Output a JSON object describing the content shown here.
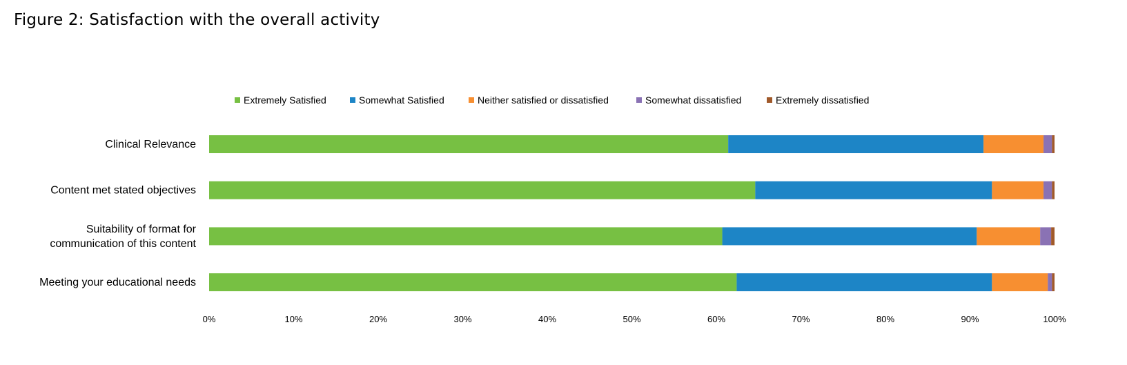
{
  "title": "Figure 2: Satisfaction with the overall activity",
  "chart_data": {
    "type": "bar",
    "orientation": "horizontal",
    "stacked": true,
    "percent": true,
    "title": "Figure 2: Satisfaction with the overall activity",
    "xlim": [
      0,
      100
    ],
    "x_ticks": [
      "0%",
      "10%",
      "20%",
      "30%",
      "40%",
      "50%",
      "60%",
      "70%",
      "80%",
      "90%",
      "100%"
    ],
    "grid": false,
    "legend_position": "top",
    "categories": [
      {
        "label": [
          "Clinical Relevance"
        ]
      },
      {
        "label": [
          "Content met stated objectives"
        ]
      },
      {
        "label": [
          "Suitability of format for",
          "communication of this content"
        ]
      },
      {
        "label": [
          "Meeting your educational needs"
        ]
      }
    ],
    "series": [
      {
        "name": "Extremely Satisfied",
        "color": "#77c043",
        "values": [
          61.4,
          64.6,
          60.7,
          62.4
        ]
      },
      {
        "name": "Somewhat Satisfied",
        "color": "#1d85c6",
        "values": [
          30.2,
          28.0,
          30.1,
          30.2
        ]
      },
      {
        "name": "Neither satisfied or dissatisfied",
        "color": "#f78f31",
        "values": [
          7.1,
          6.1,
          7.5,
          6.6
        ]
      },
      {
        "name": "Somewhat dissatisfied",
        "color": "#8a72b4",
        "values": [
          1.0,
          1.0,
          1.3,
          0.5
        ]
      },
      {
        "name": "Extremely dissatisfied",
        "color": "#a0592a",
        "values": [
          0.3,
          0.3,
          0.4,
          0.3
        ]
      }
    ]
  }
}
